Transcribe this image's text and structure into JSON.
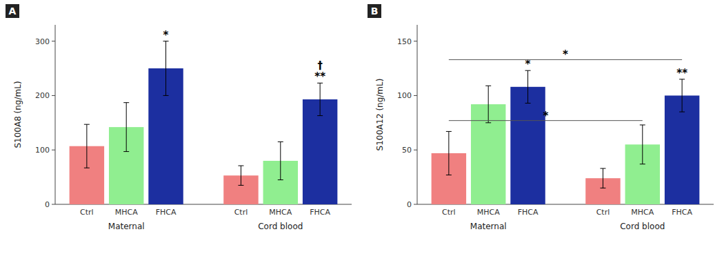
{
  "chart_data": [
    {
      "type": "bar",
      "title": "A",
      "ylabel": "S100A8 (ng/mL)",
      "categories": [
        "Ctrl",
        "MHCA",
        "FHCA"
      ],
      "colors": [
        "#F08080",
        "#90EE90",
        "#1C2FA0"
      ],
      "series": [
        {
          "name": "Maternal",
          "values": [
            107,
            142,
            250
          ],
          "errors": [
            40,
            45,
            50
          ]
        },
        {
          "name": "Cord blood",
          "values": [
            53,
            80,
            193
          ],
          "errors": [
            18,
            35,
            30
          ]
        }
      ],
      "ylim": [
        0,
        330
      ],
      "yticks": [
        0,
        100,
        200,
        300
      ],
      "grid": false,
      "annotations": [
        {
          "text": "*",
          "series": 0,
          "category": 2
        },
        {
          "text": "**",
          "series": 1,
          "category": 2
        },
        {
          "text": "†",
          "series": 1,
          "category": 2
        }
      ]
    },
    {
      "type": "bar",
      "title": "B",
      "ylabel": "S100A12 (ng/mL)",
      "categories": [
        "Ctrl",
        "MHCA",
        "FHCA"
      ],
      "colors": [
        "#F08080",
        "#90EE90",
        "#1C2FA0"
      ],
      "series": [
        {
          "name": "Maternal",
          "values": [
            47,
            92,
            108
          ],
          "errors": [
            20,
            17,
            15
          ]
        },
        {
          "name": "Cord blood",
          "values": [
            24,
            55,
            100
          ],
          "errors": [
            9,
            18,
            15
          ]
        }
      ],
      "ylim": [
        0,
        165
      ],
      "yticks": [
        0,
        50,
        100,
        150
      ],
      "grid": false,
      "annotations": [
        {
          "text": "*",
          "series": 0,
          "category": 2
        },
        {
          "text": "**",
          "series": 1,
          "category": 2
        },
        {
          "text": "*",
          "y": 77,
          "from": [
            0,
            0
          ],
          "to": [
            1,
            1
          ]
        },
        {
          "text": "*",
          "y": 133,
          "from": [
            0,
            0
          ],
          "to": [
            1,
            2
          ]
        }
      ]
    }
  ]
}
